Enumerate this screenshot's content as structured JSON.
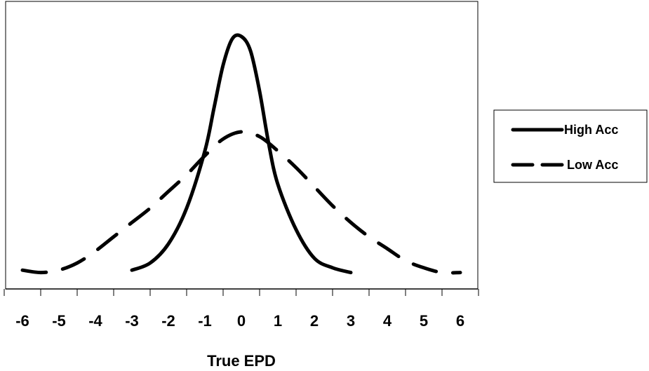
{
  "chart_data": {
    "type": "line",
    "title": "",
    "xlabel": "True EPD",
    "ylabel": "",
    "xlim": [
      -6.5,
      6.5
    ],
    "ylim": [
      0,
      1
    ],
    "xticks": [
      "-6",
      "-5",
      "-4",
      "-3",
      "-2",
      "-1",
      "0",
      "1",
      "2",
      "3",
      "4",
      "5",
      "6"
    ],
    "grid": false,
    "legend": "right",
    "series": [
      {
        "name": "High Acc",
        "style": "solid",
        "color": "#000000",
        "x": [
          -3,
          -2.5,
          -2,
          -1.5,
          -1,
          -0.75,
          -0.5,
          -0.25,
          0,
          0.25,
          0.5,
          0.75,
          1,
          1.5,
          2,
          2.5,
          3
        ],
        "y": [
          0.02,
          0.05,
          0.13,
          0.28,
          0.52,
          0.7,
          0.88,
          0.99,
          1.0,
          0.94,
          0.77,
          0.55,
          0.38,
          0.19,
          0.07,
          0.03,
          0.01
        ]
      },
      {
        "name": "Low Acc",
        "style": "dashed",
        "color": "#000000",
        "x": [
          -6,
          -5.5,
          -5,
          -4.5,
          -4,
          -3.5,
          -3,
          -2.5,
          -2,
          -1.5,
          -1,
          -0.5,
          0,
          0.5,
          1,
          1.5,
          2,
          2.5,
          3,
          3.5,
          4,
          4.5,
          5,
          5.5,
          6
        ],
        "y": [
          0.02,
          0.01,
          0.02,
          0.05,
          0.1,
          0.16,
          0.22,
          0.28,
          0.35,
          0.42,
          0.5,
          0.57,
          0.6,
          0.58,
          0.52,
          0.45,
          0.37,
          0.29,
          0.22,
          0.16,
          0.11,
          0.06,
          0.03,
          0.01,
          0.01
        ]
      }
    ]
  }
}
